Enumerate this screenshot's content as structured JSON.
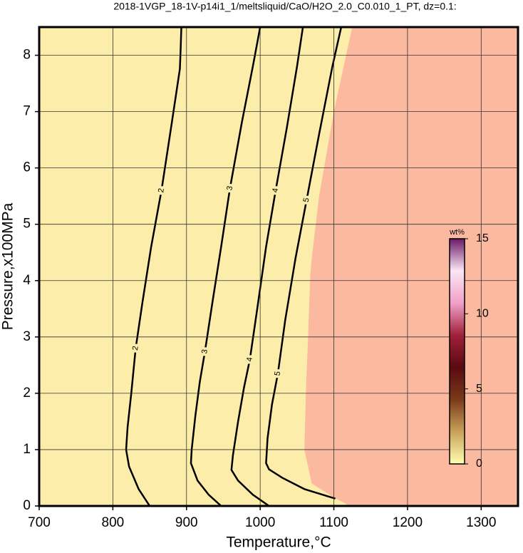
{
  "chart_data": {
    "type": "contour",
    "title": "2018-1VGP_18-1V-p14i1_1/meltsliquid/CaO/H2O_2.0_C0.010_1_PT, dz=0.1:",
    "x_label": "Temperature,°C",
    "y_label": "Pressure,x100MPa",
    "xlim": [
      700,
      1350
    ],
    "ylim": [
      0,
      8.5
    ],
    "xticks": [
      700,
      800,
      900,
      1000,
      1100,
      1200,
      1300
    ],
    "yticks": [
      0,
      1,
      2,
      3,
      4,
      5,
      6,
      7,
      8
    ],
    "grid": true,
    "background_color": "#fdedaa",
    "regions": [
      {
        "color": "#fbb9a0",
        "x": [
          1125,
          1100,
          1080,
          1070,
          1068,
          1065,
          1062,
          1060,
          1070,
          1100,
          1115,
          1120,
          1350,
          1350
        ],
        "y": [
          8.5,
          7,
          5.5,
          4.4,
          4.1,
          3,
          2,
          1,
          0.4,
          0.15,
          0.05,
          0,
          0,
          8.5
        ]
      }
    ],
    "contours": [
      {
        "level": 2,
        "x": [
          850,
          835,
          822,
          818,
          820,
          825,
          831,
          840,
          852,
          866,
          880,
          891,
          892,
          893
        ],
        "y": [
          0,
          0.3,
          0.7,
          1.0,
          1.4,
          2.0,
          2.8,
          3.6,
          4.6,
          5.6,
          6.8,
          7.76,
          8.1,
          8.5
        ]
      },
      {
        "level": 3,
        "x": [
          947,
          930,
          915,
          906,
          907,
          912,
          918,
          925,
          935,
          947,
          959,
          975,
          990,
          1000
        ],
        "y": [
          0,
          0.2,
          0.45,
          0.76,
          1.0,
          1.6,
          2.2,
          2.74,
          3.6,
          4.6,
          5.64,
          6.8,
          7.8,
          8.5
        ]
      },
      {
        "level": 4,
        "x": [
          1012,
          990,
          970,
          961,
          963,
          970,
          978,
          986,
          996,
          1008,
          1021,
          1036,
          1050,
          1058
        ],
        "y": [
          0,
          0.2,
          0.45,
          0.64,
          0.9,
          1.5,
          2.1,
          2.6,
          3.5,
          4.6,
          5.6,
          6.7,
          7.8,
          8.5
        ]
      },
      {
        "level": 5,
        "x": [
          1102,
          1060,
          1030,
          1012,
          1008,
          1010,
          1016,
          1024,
          1034,
          1048,
          1063,
          1080,
          1098,
          1110
        ],
        "y": [
          0.13,
          0.3,
          0.5,
          0.65,
          0.76,
          1.2,
          1.8,
          2.35,
          3.3,
          4.4,
          5.43,
          6.6,
          7.8,
          8.5
        ]
      }
    ],
    "colorbar": {
      "label": "wt%",
      "lim": [
        0,
        15
      ],
      "ticks": [
        0,
        5,
        10,
        15
      ],
      "colormap": [
        "#ffffb0",
        "#c9a25a",
        "#7a3a1a",
        "#5a0a10",
        "#a0203a",
        "#f0a0c8",
        "#fbe6f4",
        "#6a1a6a"
      ]
    }
  }
}
